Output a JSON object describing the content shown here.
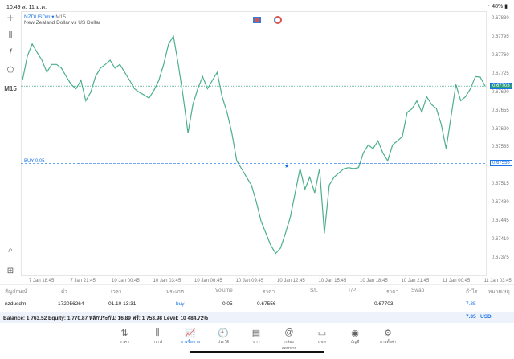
{
  "status": {
    "time": "10:49",
    "date": "ส. 11 ม.ค.",
    "battery": "48%"
  },
  "chart_header": {
    "symbol": "NZDUSDm",
    "timeframe": "M15",
    "description": "New Zealand Dollar vs US Dollar",
    "period_label": "M15"
  },
  "order_line": {
    "label": "BUY 0.05",
    "price": 0.67556,
    "price_label": "0.67556"
  },
  "current_price": {
    "value": 0.67703,
    "label": "0.67703"
  },
  "colors": {
    "line": "#4caf8a",
    "accent": "#1a73e8",
    "current": "#2a9d7f"
  },
  "chart_data": {
    "type": "line",
    "ylim": [
      0.6735,
      0.6785
    ],
    "y_ticks": [
      "0.67830",
      "0.67795",
      "0.67760",
      "0.67725",
      "0.67690",
      "0.67655",
      "0.67620",
      "0.67585",
      "0.67515",
      "0.67480",
      "0.67445",
      "0.67410",
      "0.67375"
    ],
    "x_ticks": [
      "7 Jan 18:45",
      "7 Jan 21:45",
      "10 Jan 00:45",
      "10 Jan 03:45",
      "10 Jan 06:45",
      "10 Jan 09:45",
      "10 Jan 12:45",
      "10 Jan 15:45",
      "10 Jan 18:45",
      "10 Jan 21:45",
      "11 Jan 00:45",
      "11 Jan 03:45"
    ],
    "values": [
      0.67714,
      0.6776,
      0.67783,
      0.67767,
      0.67752,
      0.67729,
      0.67744,
      0.67744,
      0.67737,
      0.67721,
      0.67706,
      0.67698,
      0.67714,
      0.67675,
      0.67691,
      0.67721,
      0.67737,
      0.67744,
      0.67752,
      0.67737,
      0.67744,
      0.67729,
      0.67714,
      0.67698,
      0.67691,
      0.67686,
      0.6768,
      0.67695,
      0.67714,
      0.67744,
      0.67783,
      0.67798,
      0.67744,
      0.67683,
      0.67614,
      0.67668,
      0.67698,
      0.67721,
      0.67698,
      0.67714,
      0.67729,
      0.67683,
      0.67653,
      0.67614,
      0.67561,
      0.67546,
      0.6753,
      0.67515,
      0.67484,
      0.67446,
      0.67423,
      0.674,
      0.67385,
      0.67395,
      0.67423,
      0.67454,
      0.675,
      0.67546,
      0.67507,
      0.6753,
      0.675,
      0.67546,
      0.67423,
      0.67515,
      0.6753,
      0.67538,
      0.67546,
      0.67548,
      0.67546,
      0.67548,
      0.67576,
      0.67591,
      0.67584,
      0.67599,
      0.67576,
      0.67561,
      0.67591,
      0.67599,
      0.67607,
      0.67653,
      0.6766,
      0.67675,
      0.67653,
      0.67683,
      0.67668,
      0.6766,
      0.6763,
      0.67584,
      0.67645,
      0.67706,
      0.67675,
      0.67683,
      0.67698,
      0.67721,
      0.6772,
      0.67703
    ]
  },
  "table": {
    "headers": [
      "สัญลักษณ์",
      "ตั๋ว",
      "เวลา",
      "ประเภท",
      "Volume",
      "ราคา",
      "S/L",
      "T/P",
      "ราคา",
      "Swap",
      "กำไร",
      "หมายเหตุ"
    ],
    "row": {
      "symbol": "nzdusdm",
      "ticket": "172056264",
      "time": "01.10 13:31",
      "type": "buy",
      "volume": "0.05",
      "open_price": "0.67556",
      "current_price": "0.67703",
      "profit": "7.35"
    }
  },
  "balance": {
    "text": "Balance: 1 763.52 Equity: 1 770.87 หลักประกัน: 16.89 ฟรี: 1 753.98 Level: 10 484.72%",
    "total": "7.35",
    "currency": "USD"
  },
  "nav": [
    "ราคา",
    "กราฟ",
    "การซื้อขาย",
    "ประวัติ",
    "ข่าว",
    "กล่องจดหมาย",
    "แชท",
    "บัญชี",
    "การตั้งค่า"
  ]
}
